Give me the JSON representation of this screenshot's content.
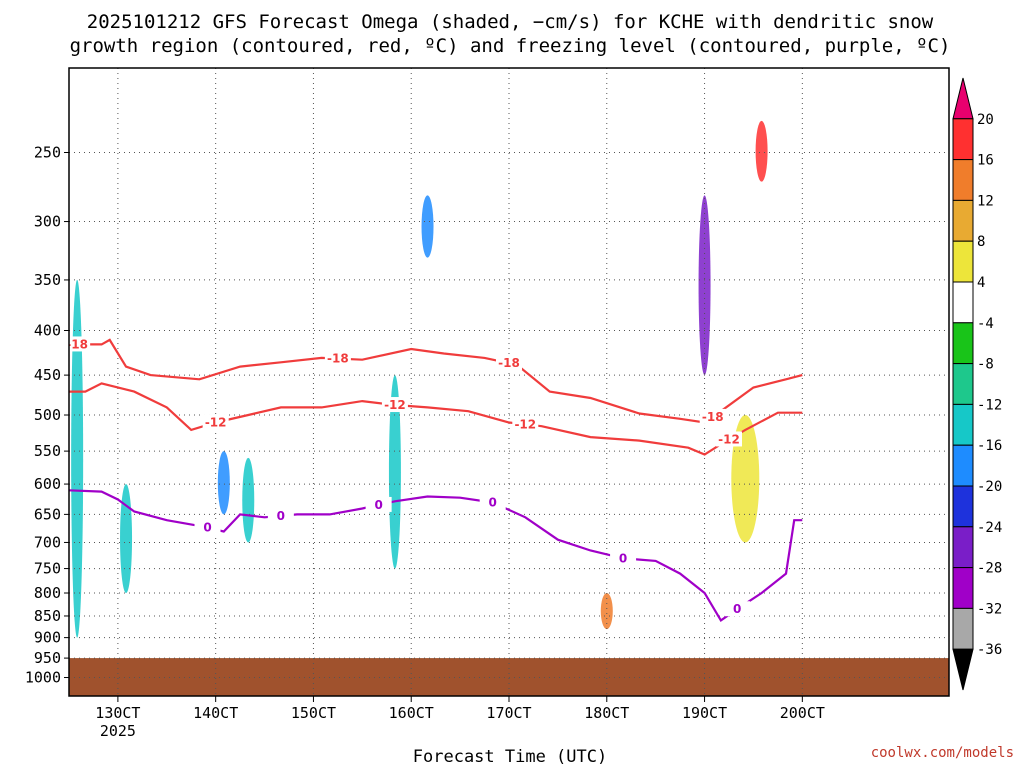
{
  "title": {
    "line1": "2025101212 GFS Forecast Omega (shaded, −cm/s) for KCHE with dendritic snow",
    "line2": "growth region (contoured, red, ºC) and freezing level (contoured, purple, ºC)"
  },
  "credit": "coolwx.com/models",
  "chart_data": {
    "type": "heatmap",
    "title": "2025101212 GFS Forecast Omega (shaded, −cm/s) for KCHE with dendritic snow growth region (contoured, red, ºC) and freezing level (contoured, purple, ºC)",
    "xlabel": "Forecast Time (UTC)",
    "ylabel": "",
    "x_range_hours": [
      12,
      120
    ],
    "x_ticks": [
      {
        "hour": 18,
        "label": "130CT",
        "sublabel": "2025"
      },
      {
        "hour": 30,
        "label": "140CT"
      },
      {
        "hour": 42,
        "label": "150CT"
      },
      {
        "hour": 54,
        "label": "160CT"
      },
      {
        "hour": 66,
        "label": "170CT"
      },
      {
        "hour": 78,
        "label": "180CT"
      },
      {
        "hour": 90,
        "label": "190CT"
      },
      {
        "hour": 102,
        "label": "200CT"
      }
    ],
    "y_scale": "log-pressure",
    "y_range_hPa": [
      1050,
      200
    ],
    "y_ticks": [
      250,
      300,
      350,
      400,
      450,
      500,
      550,
      600,
      650,
      700,
      750,
      800,
      850,
      900,
      950,
      1000
    ],
    "grid": true,
    "colorbar": {
      "position": "right",
      "levels": [
        20,
        16,
        12,
        8,
        4,
        -4,
        -8,
        -12,
        -16,
        -20,
        -24,
        -28,
        -32,
        -36
      ],
      "colors": [
        "#e8006e",
        "#ff3030",
        "#f07d2b",
        "#e8aa32",
        "#ede53a",
        "#ffffff",
        "#19c419",
        "#1ec88c",
        "#16c8c8",
        "#1e8cff",
        "#1e32dc",
        "#7a1ec8",
        "#a000c8",
        "#a8a8a8",
        "#000000"
      ]
    },
    "shaded_features": [
      {
        "hour": 13,
        "p_top": 350,
        "p_bot": 900,
        "omega": -16
      },
      {
        "hour": 19,
        "p_top": 600,
        "p_bot": 800,
        "omega": -16
      },
      {
        "hour": 31,
        "p_top": 550,
        "p_bot": 650,
        "omega": -20
      },
      {
        "hour": 34,
        "p_top": 560,
        "p_bot": 700,
        "omega": -16
      },
      {
        "hour": 52,
        "p_top": 450,
        "p_bot": 750,
        "omega": -16
      },
      {
        "hour": 56,
        "p_top": 280,
        "p_bot": 330,
        "omega": -20
      },
      {
        "hour": 90,
        "p_top": 280,
        "p_bot": 450,
        "omega": -28
      },
      {
        "hour": 97,
        "p_top": 230,
        "p_bot": 270,
        "omega": 16
      },
      {
        "hour": 78,
        "p_top": 800,
        "p_bot": 880,
        "omega": 12
      },
      {
        "hour": 95,
        "p_top": 500,
        "p_bot": 700,
        "omega": 4
      }
    ],
    "contours": [
      {
        "name": "-18",
        "color": "#f03c3c",
        "label_hours": [
          13,
          45,
          66,
          91
        ],
        "points": [
          [
            12,
            415
          ],
          [
            16,
            415
          ],
          [
            17,
            410
          ],
          [
            19,
            440
          ],
          [
            22,
            450
          ],
          [
            28,
            455
          ],
          [
            33,
            440
          ],
          [
            38,
            435
          ],
          [
            43,
            430
          ],
          [
            48,
            432
          ],
          [
            54,
            420
          ],
          [
            58,
            425
          ],
          [
            63,
            430
          ],
          [
            67,
            438
          ],
          [
            71,
            470
          ],
          [
            76,
            478
          ],
          [
            82,
            498
          ],
          [
            87,
            505
          ],
          [
            90,
            510
          ],
          [
            92,
            495
          ],
          [
            96,
            465
          ],
          [
            100,
            455
          ],
          [
            102,
            450
          ]
        ]
      },
      {
        "name": "-12",
        "color": "#f03c3c",
        "label_hours": [
          30,
          52,
          68,
          93
        ],
        "points": [
          [
            12,
            470
          ],
          [
            14,
            470
          ],
          [
            16,
            460
          ],
          [
            20,
            470
          ],
          [
            24,
            490
          ],
          [
            27,
            520
          ],
          [
            30,
            510
          ],
          [
            34,
            500
          ],
          [
            38,
            490
          ],
          [
            43,
            490
          ],
          [
            48,
            482
          ],
          [
            52,
            487
          ],
          [
            56,
            490
          ],
          [
            61,
            495
          ],
          [
            66,
            510
          ],
          [
            70,
            515
          ],
          [
            76,
            530
          ],
          [
            82,
            535
          ],
          [
            88,
            545
          ],
          [
            90,
            555
          ],
          [
            92,
            540
          ],
          [
            95,
            520
          ],
          [
            99,
            497
          ],
          [
            102,
            497
          ]
        ]
      },
      {
        "name": "0",
        "color": "#a000c8",
        "label_hours": [
          29,
          38,
          50,
          64,
          80,
          94
        ],
        "points": [
          [
            12,
            610
          ],
          [
            16,
            612
          ],
          [
            18,
            625
          ],
          [
            20,
            645
          ],
          [
            24,
            660
          ],
          [
            28,
            670
          ],
          [
            31,
            680
          ],
          [
            33,
            650
          ],
          [
            36,
            655
          ],
          [
            40,
            650
          ],
          [
            44,
            650
          ],
          [
            48,
            640
          ],
          [
            52,
            628
          ],
          [
            56,
            620
          ],
          [
            60,
            622
          ],
          [
            64,
            630
          ],
          [
            68,
            655
          ],
          [
            72,
            695
          ],
          [
            76,
            715
          ],
          [
            80,
            730
          ],
          [
            84,
            735
          ],
          [
            87,
            760
          ],
          [
            90,
            800
          ],
          [
            92,
            860
          ],
          [
            94,
            835
          ],
          [
            97,
            800
          ],
          [
            100,
            760
          ],
          [
            101,
            660
          ],
          [
            102,
            660
          ]
        ]
      }
    ],
    "terrain": {
      "surface_hPa": 950,
      "color": "#a0522d"
    }
  }
}
